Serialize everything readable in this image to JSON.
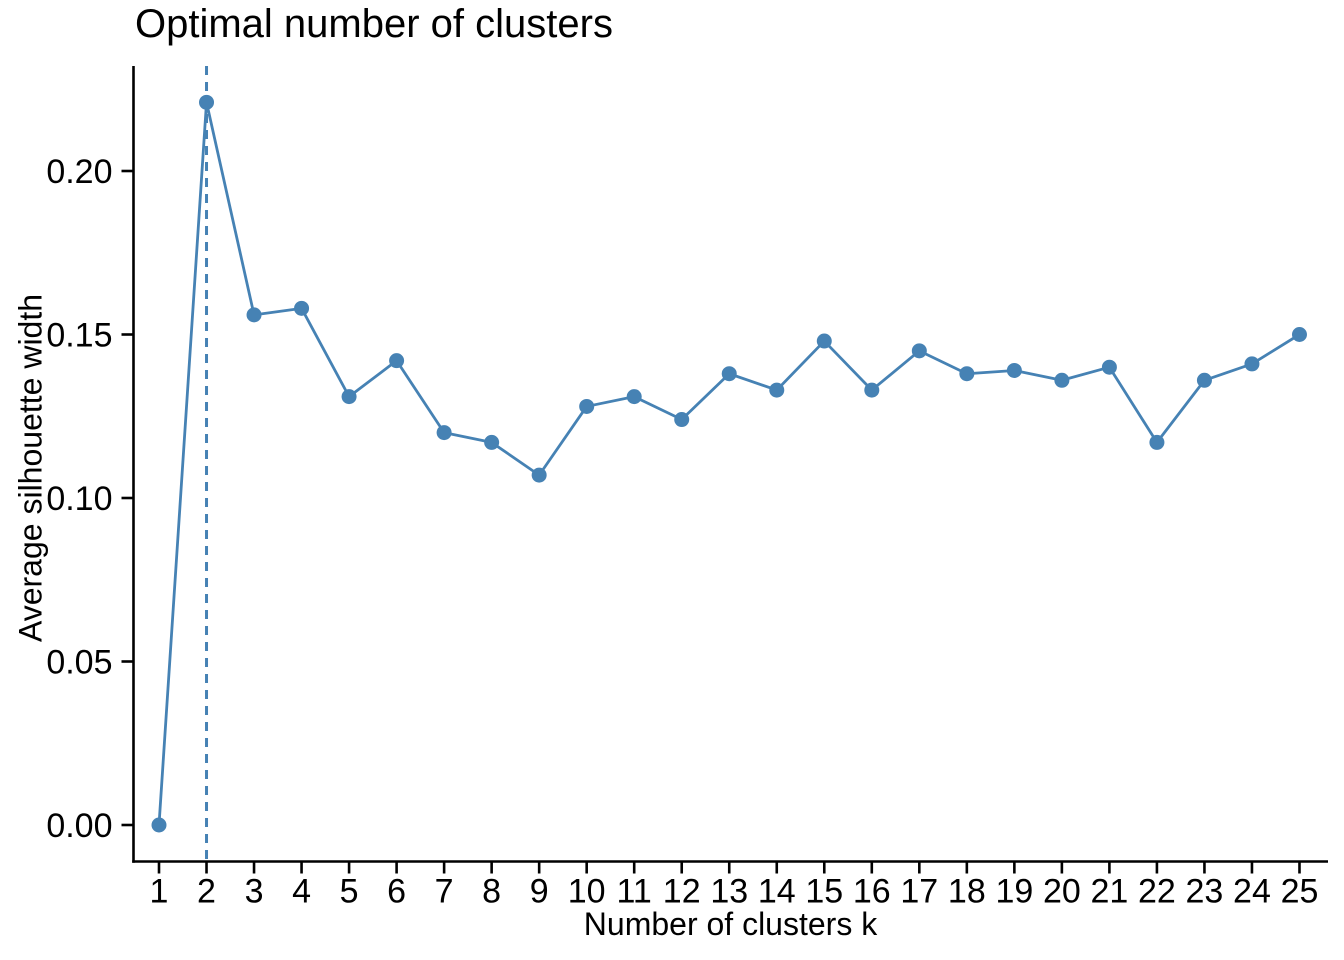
{
  "chart_data": {
    "type": "line",
    "title": "Optimal number of clusters",
    "xlabel": "Number of clusters k",
    "ylabel": "Average silhouette width",
    "x": [
      1,
      2,
      3,
      4,
      5,
      6,
      7,
      8,
      9,
      10,
      11,
      12,
      13,
      14,
      15,
      16,
      17,
      18,
      19,
      20,
      21,
      22,
      23,
      24,
      25
    ],
    "y": [
      0.0,
      0.221,
      0.156,
      0.158,
      0.131,
      0.142,
      0.12,
      0.117,
      0.107,
      0.128,
      0.131,
      0.124,
      0.138,
      0.133,
      0.148,
      0.133,
      0.145,
      0.138,
      0.139,
      0.136,
      0.14,
      0.117,
      0.136,
      0.141,
      0.15
    ],
    "x_tick_labels": [
      "1",
      "2",
      "3",
      "4",
      "5",
      "6",
      "7",
      "8",
      "9",
      "10",
      "11",
      "12",
      "13",
      "14",
      "15",
      "16",
      "17",
      "18",
      "19",
      "20",
      "21",
      "22",
      "23",
      "24",
      "25"
    ],
    "y_ticks": [
      0.0,
      0.05,
      0.1,
      0.15,
      0.2
    ],
    "y_tick_labels": [
      "0.00",
      "0.05",
      "0.10",
      "0.15",
      "0.20"
    ],
    "xlim": [
      0.45,
      25.6
    ],
    "ylim": [
      -0.011,
      0.232
    ],
    "vline_x": 2,
    "vline_style": "dashed",
    "legend": null,
    "grid": false,
    "colors": {
      "line": "#4682B4",
      "point": "#4682B4",
      "vline": "#4682B4",
      "axis": "#000000",
      "text": "#000000",
      "background": "#FFFFFF"
    }
  }
}
